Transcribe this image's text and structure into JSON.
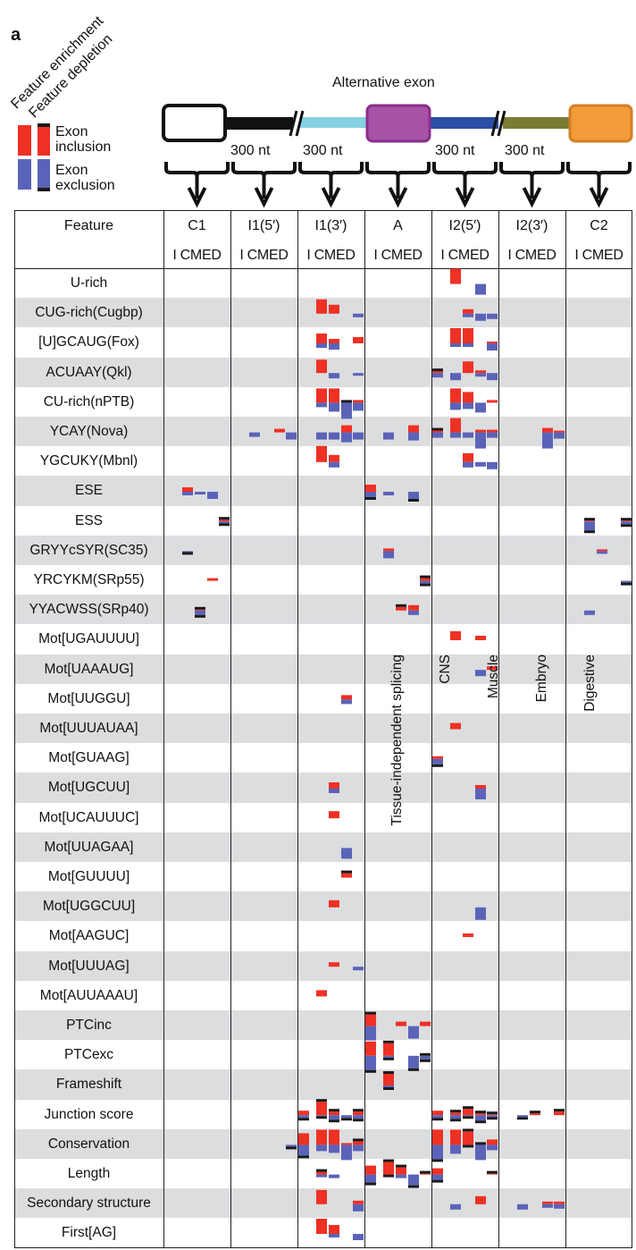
{
  "panel_label": "a",
  "legend": {
    "enrichment_label": "Feature enrichment",
    "depletion_label": "Feature depletion",
    "inclusion_label_1": "Exon",
    "inclusion_label_2": "inclusion",
    "exclusion_label_1": "Exon",
    "exclusion_label_2": "exclusion"
  },
  "gene_diagram": {
    "alt_exon_label": "Alternative exon",
    "segment_length_labels": [
      "300 nt",
      "300 nt",
      "300 nt",
      "300 nt"
    ],
    "colors": {
      "exon_c1": "#ffffff",
      "intron1_5": "#111111",
      "intron1_3": "#86d2e2",
      "exon_a": "#a652a6",
      "intron2_5": "#2c4ea3",
      "intron2_3": "#7a7c33",
      "exon_c2": "#f39a3a"
    }
  },
  "table": {
    "feature_header": "Feature",
    "columns": [
      "C1",
      "I1(5′)",
      "I1(3′)",
      "A",
      "I2(5′)",
      "I2(3′)",
      "C2"
    ],
    "sub_header": "I CMED",
    "conditions": [
      "Tissue-independent splicing",
      "CNS",
      "Muscle",
      "Embryo",
      "Digestive"
    ],
    "features": [
      "U-rich",
      "CUG-rich(Cugbp)",
      "[U]GCAUG(Fox)",
      "ACUAAY(Qkl)",
      "CU-rich(nPTB)",
      "YCAY(Nova)",
      "YGCUKY(Mbnl)",
      "ESE",
      "ESS",
      "GRYYcSYR(SC35)",
      "YRCYKM(SRp55)",
      "YYACWSS(SRp40)",
      "Mot[UGAUUUU]",
      "Mot[UAAAUG]",
      "Mot[UUGGU]",
      "Mot[UUUAUAA]",
      "Mot[GUAAG]",
      "Mot[UGCUU]",
      "Mot[UCAUUUC]",
      "Mot[UUAGAA]",
      "Mot[GUUUU]",
      "Mot[UGGCUU]",
      "Mot[AAGUC]",
      "Mot[UUUAG]",
      "Mot[AUUAAAU]",
      "PTCinc",
      "PTCexc",
      "Frameshift",
      "Junction score",
      "Conservation",
      "Length",
      "Secondary structure",
      "First[AG]"
    ]
  },
  "colors": {
    "inclusion": "#ee3124",
    "exclusion": "#5b63b8",
    "depletion": "#1a1a1a",
    "stripe": "#dcdddf"
  },
  "chart_data": {
    "type": "heatmap",
    "encoding": "per feature/region/condition: inclusion score (red, drawn upward), exclusion score (blue, drawn downward), depletion flags (black caps) — arbitrary units",
    "marks": [
      {
        "r": 0,
        "c": 4,
        "s": 1,
        "red": 17,
        "blue": 0
      },
      {
        "r": 0,
        "c": 4,
        "s": 3,
        "red": 0,
        "blue": 12
      },
      {
        "r": 1,
        "c": 2,
        "s": 1,
        "red": 16,
        "blue": 0
      },
      {
        "r": 1,
        "c": 2,
        "s": 2,
        "red": 10,
        "blue": 0
      },
      {
        "r": 1,
        "c": 2,
        "s": 4,
        "red": 0,
        "blue": 4
      },
      {
        "r": 1,
        "c": 4,
        "s": 2,
        "red": 5,
        "blue": 4
      },
      {
        "r": 1,
        "c": 4,
        "s": 3,
        "red": 0,
        "blue": 8
      },
      {
        "r": 1,
        "c": 4,
        "s": 4,
        "red": 0,
        "blue": 6
      },
      {
        "r": 2,
        "c": 2,
        "s": 1,
        "red": 11,
        "blue": 5
      },
      {
        "r": 2,
        "c": 2,
        "s": 2,
        "red": 5,
        "blue": 7
      },
      {
        "r": 2,
        "c": 2,
        "s": 4,
        "red": 7,
        "blue": 0
      },
      {
        "r": 2,
        "c": 4,
        "s": 1,
        "red": 17,
        "blue": 4
      },
      {
        "r": 2,
        "c": 4,
        "s": 2,
        "red": 17,
        "blue": 4
      },
      {
        "r": 2,
        "c": 4,
        "s": 4,
        "red": 2,
        "blue": 8
      },
      {
        "r": 3,
        "c": 2,
        "s": 1,
        "red": 15,
        "blue": 0
      },
      {
        "r": 3,
        "c": 2,
        "s": 2,
        "red": 0,
        "blue": 6
      },
      {
        "r": 3,
        "c": 2,
        "s": 4,
        "red": 0,
        "blue": 3
      },
      {
        "r": 3,
        "c": 4,
        "s": 0,
        "red": 2,
        "blue": 5,
        "top": 1
      },
      {
        "r": 3,
        "c": 4,
        "s": 1,
        "red": 0,
        "blue": 8
      },
      {
        "r": 3,
        "c": 4,
        "s": 2,
        "red": 13,
        "blue": 0
      },
      {
        "r": 3,
        "c": 4,
        "s": 3,
        "red": 3,
        "blue": 4
      },
      {
        "r": 3,
        "c": 4,
        "s": 4,
        "red": 0,
        "blue": 8
      },
      {
        "r": 4,
        "c": 2,
        "s": 1,
        "red": 16,
        "blue": 5
      },
      {
        "r": 4,
        "c": 2,
        "s": 2,
        "red": 16,
        "blue": 10
      },
      {
        "r": 4,
        "c": 2,
        "s": 3,
        "red": 0,
        "blue": 18,
        "top": 1
      },
      {
        "r": 4,
        "c": 2,
        "s": 4,
        "red": 3,
        "blue": 9
      },
      {
        "r": 4,
        "c": 4,
        "s": 1,
        "red": 16,
        "blue": 8
      },
      {
        "r": 4,
        "c": 4,
        "s": 2,
        "red": 12,
        "blue": 7
      },
      {
        "r": 4,
        "c": 4,
        "s": 3,
        "red": 0,
        "blue": 11
      },
      {
        "r": 4,
        "c": 4,
        "s": 4,
        "red": 3,
        "blue": 0
      },
      {
        "r": 5,
        "c": 1,
        "s": 1,
        "red": 0,
        "blue": 5
      },
      {
        "r": 5,
        "c": 1,
        "s": 3,
        "red": 4,
        "blue": 0
      },
      {
        "r": 5,
        "c": 1,
        "s": 4,
        "red": 0,
        "blue": 8
      },
      {
        "r": 5,
        "c": 2,
        "s": 1,
        "red": 0,
        "blue": 8
      },
      {
        "r": 5,
        "c": 2,
        "s": 2,
        "red": 0,
        "blue": 8
      },
      {
        "r": 5,
        "c": 2,
        "s": 3,
        "red": 8,
        "blue": 11
      },
      {
        "r": 5,
        "c": 2,
        "s": 4,
        "red": 0,
        "blue": 8
      },
      {
        "r": 5,
        "c": 3,
        "s": 1,
        "red": 0,
        "blue": 8
      },
      {
        "r": 5,
        "c": 3,
        "s": 3,
        "red": 8,
        "blue": 9
      },
      {
        "r": 5,
        "c": 4,
        "s": 0,
        "red": 2,
        "blue": 6,
        "top": 1
      },
      {
        "r": 5,
        "c": 4,
        "s": 1,
        "red": 16,
        "blue": 6
      },
      {
        "r": 5,
        "c": 4,
        "s": 2,
        "red": 0,
        "blue": 6
      },
      {
        "r": 5,
        "c": 4,
        "s": 3,
        "red": 3,
        "blue": 18
      },
      {
        "r": 5,
        "c": 4,
        "s": 4,
        "red": 3,
        "blue": 6
      },
      {
        "r": 5,
        "c": 5,
        "s": 3,
        "red": 5,
        "blue": 18
      },
      {
        "r": 5,
        "c": 5,
        "s": 4,
        "red": 2,
        "blue": 7
      },
      {
        "r": 6,
        "c": 2,
        "s": 1,
        "red": 18,
        "blue": 0
      },
      {
        "r": 6,
        "c": 2,
        "s": 2,
        "red": 8,
        "blue": 6
      },
      {
        "r": 6,
        "c": 4,
        "s": 2,
        "red": 10,
        "blue": 6
      },
      {
        "r": 6,
        "c": 4,
        "s": 3,
        "red": 0,
        "blue": 5
      },
      {
        "r": 6,
        "c": 4,
        "s": 4,
        "red": 0,
        "blue": 8
      },
      {
        "r": 7,
        "c": 0,
        "s": 1,
        "red": 5,
        "blue": 4
      },
      {
        "r": 7,
        "c": 0,
        "s": 2,
        "red": 0,
        "blue": 3
      },
      {
        "r": 7,
        "c": 0,
        "s": 3,
        "red": 0,
        "blue": 8
      },
      {
        "r": 7,
        "c": 3,
        "s": 0,
        "red": 8,
        "blue": 6,
        "bot": 1
      },
      {
        "r": 7,
        "c": 3,
        "s": 1,
        "red": 0,
        "blue": 4
      },
      {
        "r": 7,
        "c": 3,
        "s": 3,
        "red": 0,
        "blue": 8,
        "bot": 1
      },
      {
        "r": 8,
        "c": 0,
        "s": 4,
        "red": 2,
        "blue": 2,
        "top": 1,
        "bot": 1
      },
      {
        "r": 8,
        "c": 6,
        "s": 1,
        "red": 1,
        "blue": 10,
        "top": 1,
        "bot": 1
      },
      {
        "r": 8,
        "c": 6,
        "s": 4,
        "red": 1,
        "blue": 3,
        "top": 1,
        "bot": 1
      },
      {
        "r": 9,
        "c": 0,
        "s": 1,
        "red": 0,
        "blue": 1,
        "bot": 1
      },
      {
        "r": 9,
        "c": 3,
        "s": 1,
        "red": 3,
        "blue": 8
      },
      {
        "r": 9,
        "c": 6,
        "s": 2,
        "red": 2,
        "blue": 3
      },
      {
        "r": 10,
        "c": 0,
        "s": 3,
        "red": 3,
        "blue": 0
      },
      {
        "r": 10,
        "c": 3,
        "s": 4,
        "red": 3,
        "blue": 3,
        "top": 1,
        "bot": 1
      },
      {
        "r": 10,
        "c": 6,
        "s": 4,
        "red": 0,
        "blue": 2,
        "bot": 1
      },
      {
        "r": 11,
        "c": 0,
        "s": 2,
        "red": 1,
        "blue": 5,
        "top": 1,
        "bot": 1
      },
      {
        "r": 11,
        "c": 3,
        "s": 2,
        "red": 4,
        "blue": 0,
        "top": 1
      },
      {
        "r": 11,
        "c": 3,
        "s": 3,
        "red": 6,
        "blue": 5
      },
      {
        "r": 11,
        "c": 6,
        "s": 1,
        "red": 0,
        "blue": 5
      },
      {
        "r": 12,
        "c": 4,
        "s": 1,
        "red": 10,
        "blue": 0
      },
      {
        "r": 12,
        "c": 4,
        "s": 3,
        "red": 5,
        "blue": 0
      },
      {
        "r": 13,
        "c": 4,
        "s": 3,
        "red": 0,
        "blue": 7
      },
      {
        "r": 13,
        "c": 4,
        "s": 4,
        "red": 4,
        "blue": 0
      },
      {
        "r": 14,
        "c": 2,
        "s": 3,
        "red": 5,
        "blue": 5
      },
      {
        "r": 15,
        "c": 4,
        "s": 1,
        "red": 7,
        "blue": 0
      },
      {
        "r": 16,
        "c": 4,
        "s": 0,
        "red": 3,
        "blue": 6,
        "bot": 1
      },
      {
        "r": 17,
        "c": 2,
        "s": 2,
        "red": 7,
        "blue": 5
      },
      {
        "r": 17,
        "c": 4,
        "s": 3,
        "red": 4,
        "blue": 12
      },
      {
        "r": 18,
        "c": 2,
        "s": 2,
        "red": 8,
        "blue": 0
      },
      {
        "r": 19,
        "c": 2,
        "s": 3,
        "red": 0,
        "blue": 12
      },
      {
        "r": 20,
        "c": 2,
        "s": 3,
        "red": 5,
        "blue": 0,
        "top": 1
      },
      {
        "r": 21,
        "c": 2,
        "s": 2,
        "red": 8,
        "blue": 0
      },
      {
        "r": 21,
        "c": 4,
        "s": 3,
        "red": 0,
        "blue": 14
      },
      {
        "r": 22,
        "c": 4,
        "s": 2,
        "red": 4,
        "blue": 0
      },
      {
        "r": 23,
        "c": 2,
        "s": 2,
        "red": 5,
        "blue": 0
      },
      {
        "r": 23,
        "c": 2,
        "s": 4,
        "red": 0,
        "blue": 4
      },
      {
        "r": 24,
        "c": 2,
        "s": 1,
        "red": 7,
        "blue": 0
      },
      {
        "r": 25,
        "c": 3,
        "s": 0,
        "red": 13,
        "blue": 16,
        "top": 1
      },
      {
        "r": 25,
        "c": 3,
        "s": 2,
        "red": 5,
        "blue": 0
      },
      {
        "r": 25,
        "c": 3,
        "s": 3,
        "red": 0,
        "blue": 14
      },
      {
        "r": 25,
        "c": 3,
        "s": 4,
        "red": 5,
        "blue": 0
      },
      {
        "r": 26,
        "c": 3,
        "s": 0,
        "red": 16,
        "blue": 16,
        "bot": 1
      },
      {
        "r": 26,
        "c": 3,
        "s": 1,
        "red": 14,
        "blue": 2,
        "top": 1,
        "bot": 1
      },
      {
        "r": 26,
        "c": 3,
        "s": 3,
        "red": 0,
        "blue": 14,
        "bot": 1
      },
      {
        "r": 26,
        "c": 3,
        "s": 4,
        "red": 0,
        "blue": 4,
        "top": 1,
        "bot": 1
      },
      {
        "r": 27,
        "c": 3,
        "s": 1,
        "red": 13,
        "blue": 2,
        "top": 1,
        "bot": 1
      },
      {
        "r": 28,
        "c": 2,
        "s": 0,
        "red": 5,
        "blue": 3,
        "bot": 1
      },
      {
        "r": 28,
        "c": 2,
        "s": 1,
        "red": 15,
        "blue": 1,
        "top": 1,
        "bot": 1
      },
      {
        "r": 28,
        "c": 2,
        "s": 2,
        "red": 4,
        "blue": 5,
        "top": 1,
        "bot": 1
      },
      {
        "r": 28,
        "c": 2,
        "s": 3,
        "red": 0,
        "blue": 3,
        "bot": 1
      },
      {
        "r": 28,
        "c": 2,
        "s": 4,
        "red": 4,
        "blue": 4,
        "top": 1,
        "bot": 1
      },
      {
        "r": 28,
        "c": 4,
        "s": 0,
        "red": 5,
        "blue": 3,
        "bot": 1
      },
      {
        "r": 28,
        "c": 4,
        "s": 1,
        "red": 3,
        "blue": 4,
        "top": 1,
        "bot": 1
      },
      {
        "r": 28,
        "c": 4,
        "s": 2,
        "red": 7,
        "blue": 1,
        "top": 1,
        "bot": 1
      },
      {
        "r": 28,
        "c": 4,
        "s": 3,
        "red": 2,
        "blue": 6,
        "top": 1,
        "bot": 1
      },
      {
        "r": 28,
        "c": 4,
        "s": 4,
        "red": 1,
        "blue": 2,
        "top": 1,
        "bot": 1
      },
      {
        "r": 28,
        "c": 5,
        "s": 1,
        "red": 0,
        "blue": 2,
        "bot": 1
      },
      {
        "r": 28,
        "c": 5,
        "s": 2,
        "red": 2,
        "blue": 0,
        "top": 1
      },
      {
        "r": 28,
        "c": 5,
        "s": 4,
        "red": 4,
        "blue": 0,
        "top": 1
      },
      {
        "r": 29,
        "c": 1,
        "s": 4,
        "red": 0,
        "blue": 2,
        "bot": 1
      },
      {
        "r": 29,
        "c": 2,
        "s": 0,
        "red": 13,
        "blue": 12,
        "bot": 1
      },
      {
        "r": 29,
        "c": 2,
        "s": 1,
        "red": 17,
        "blue": 7
      },
      {
        "r": 29,
        "c": 2,
        "s": 2,
        "red": 17,
        "blue": 9
      },
      {
        "r": 29,
        "c": 2,
        "s": 3,
        "red": 2,
        "blue": 17
      },
      {
        "r": 29,
        "c": 2,
        "s": 4,
        "red": 4,
        "blue": 7,
        "top": 1
      },
      {
        "r": 29,
        "c": 4,
        "s": 0,
        "red": 17,
        "blue": 16,
        "bot": 1
      },
      {
        "r": 29,
        "c": 4,
        "s": 1,
        "red": 17,
        "blue": 10
      },
      {
        "r": 29,
        "c": 4,
        "s": 2,
        "red": 15,
        "blue": 0,
        "top": 1,
        "bot": 1
      },
      {
        "r": 29,
        "c": 4,
        "s": 3,
        "red": 0,
        "blue": 17,
        "top": 1
      },
      {
        "r": 29,
        "c": 4,
        "s": 4,
        "red": 6,
        "blue": 6
      },
      {
        "r": 30,
        "c": 2,
        "s": 1,
        "red": 3,
        "blue": 3,
        "top": 1
      },
      {
        "r": 30,
        "c": 2,
        "s": 2,
        "red": 0,
        "blue": 4
      },
      {
        "r": 30,
        "c": 3,
        "s": 0,
        "red": 10,
        "blue": 9,
        "bot": 1
      },
      {
        "r": 30,
        "c": 3,
        "s": 1,
        "red": 14,
        "blue": 0,
        "top": 1,
        "bot": 1
      },
      {
        "r": 30,
        "c": 3,
        "s": 2,
        "red": 8,
        "blue": 4,
        "top": 1
      },
      {
        "r": 30,
        "c": 3,
        "s": 3,
        "red": 0,
        "blue": 12,
        "bot": 1
      },
      {
        "r": 30,
        "c": 3,
        "s": 4,
        "red": 1,
        "blue": 0,
        "top": 1
      },
      {
        "r": 30,
        "c": 4,
        "s": 0,
        "red": 7,
        "blue": 6,
        "bot": 1
      },
      {
        "r": 30,
        "c": 4,
        "s": 4,
        "red": 1,
        "blue": 0,
        "top": 1
      },
      {
        "r": 31,
        "c": 2,
        "s": 1,
        "red": 16,
        "blue": 0
      },
      {
        "r": 31,
        "c": 2,
        "s": 4,
        "red": 4,
        "blue": 8
      },
      {
        "r": 31,
        "c": 4,
        "s": 1,
        "red": 0,
        "blue": 6
      },
      {
        "r": 31,
        "c": 4,
        "s": 3,
        "red": 9,
        "blue": 0
      },
      {
        "r": 31,
        "c": 5,
        "s": 1,
        "red": 0,
        "blue": 6
      },
      {
        "r": 31,
        "c": 5,
        "s": 3,
        "red": 3,
        "blue": 4
      },
      {
        "r": 31,
        "c": 5,
        "s": 4,
        "red": 3,
        "blue": 5
      },
      {
        "r": 32,
        "c": 2,
        "s": 1,
        "red": 17,
        "blue": 0
      },
      {
        "r": 32,
        "c": 2,
        "s": 2,
        "red": 10,
        "blue": 4
      },
      {
        "r": 32,
        "c": 2,
        "s": 4,
        "red": 0,
        "blue": 7
      }
    ]
  }
}
